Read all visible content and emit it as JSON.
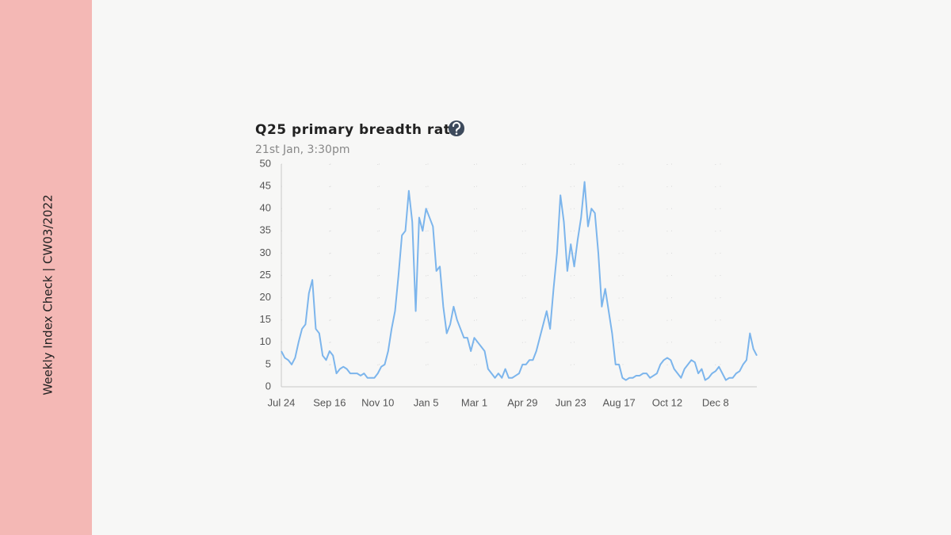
{
  "sidebar_label": "Weekly Index Check | CW03/2022",
  "chart_data": {
    "type": "line",
    "title": "Q25 primary breadth ratio",
    "subtitle": "21st Jan, 3:30pm",
    "categories": [
      "Jul 24",
      null,
      null,
      null,
      null,
      null,
      null,
      null,
      null,
      null,
      null,
      null,
      null,
      null,
      "Sep 16",
      null,
      null,
      null,
      null,
      null,
      null,
      null,
      null,
      null,
      null,
      null,
      null,
      null,
      "Nov 10",
      null,
      null,
      null,
      null,
      null,
      null,
      null,
      null,
      null,
      null,
      null,
      null,
      null,
      "Jan 5",
      null,
      null,
      null,
      null,
      null,
      null,
      null,
      null,
      null,
      null,
      null,
      null,
      null,
      "Mar 1",
      null,
      null,
      null,
      null,
      null,
      null,
      null,
      null,
      null,
      null,
      null,
      null,
      null,
      "Apr 29",
      null,
      null,
      null,
      null,
      null,
      null,
      null,
      null,
      null,
      null,
      null,
      null,
      null,
      "Jun 23",
      null,
      null,
      null,
      null,
      null,
      null,
      null,
      null,
      null,
      null,
      null,
      null,
      null,
      "Aug 17",
      null,
      null,
      null,
      null,
      null,
      null,
      null,
      null,
      null,
      null,
      null,
      null,
      null,
      "Oct 12",
      null,
      null,
      null,
      null,
      null,
      null,
      null,
      null,
      null,
      null,
      null,
      null,
      null,
      "Dec 8",
      null,
      null,
      null,
      null,
      null,
      null,
      null,
      null,
      null,
      null,
      null,
      null
    ],
    "values": [
      8,
      6.5,
      6,
      5,
      6.5,
      10,
      13,
      14,
      21,
      24,
      13,
      12,
      7,
      6,
      8,
      7,
      3,
      4,
      4.5,
      4,
      3,
      3,
      3,
      2.5,
      3,
      2,
      2,
      2,
      3,
      4.5,
      5,
      8,
      13,
      17,
      25,
      34,
      35,
      44,
      37,
      17,
      38,
      35,
      40,
      38,
      36,
      26,
      27,
      18,
      12,
      14,
      18,
      15,
      13,
      11,
      11,
      8,
      11,
      10,
      9,
      8,
      4,
      3,
      2,
      3,
      2,
      4,
      2,
      2,
      2.5,
      3,
      5,
      5,
      6,
      6,
      8,
      11,
      14,
      17,
      13,
      22,
      30,
      43,
      37,
      26,
      32,
      27,
      33,
      38,
      46,
      36,
      40,
      39,
      30,
      18,
      22,
      17,
      12,
      5,
      5,
      2,
      1.5,
      2,
      2,
      2.5,
      2.5,
      3,
      3,
      2,
      2.5,
      3,
      5,
      6,
      6.5,
      6,
      4,
      3,
      2,
      4,
      5,
      6,
      5.5,
      3,
      4,
      1.5,
      2,
      3,
      3.5,
      4.5,
      3,
      1.5,
      2,
      2,
      3,
      3.5,
      5,
      6,
      12,
      8.5,
      7
    ],
    "color": "#7cb5ec",
    "ylim": [
      0,
      50
    ],
    "yticks": [
      0,
      5,
      10,
      15,
      20,
      25,
      30,
      35,
      40,
      45,
      50
    ],
    "grid": true
  }
}
